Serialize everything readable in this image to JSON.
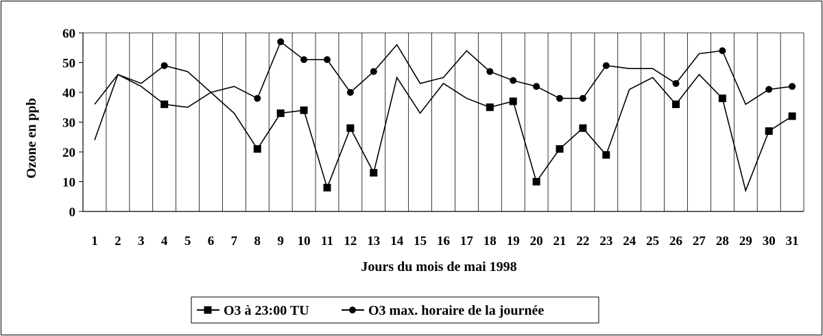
{
  "chart_data": {
    "type": "line",
    "xlabel": "Jours du mois de mai 1998",
    "ylabel": "Ozone en ppb",
    "ylim": [
      0,
      60
    ],
    "yticks": [
      0,
      10,
      20,
      30,
      40,
      50,
      60
    ],
    "categories": [
      "1",
      "2",
      "3",
      "4",
      "5",
      "6",
      "7",
      "8",
      "9",
      "10",
      "11",
      "12",
      "13",
      "14",
      "15",
      "16",
      "17",
      "18",
      "19",
      "20",
      "21",
      "22",
      "23",
      "24",
      "25",
      "26",
      "27",
      "28",
      "29",
      "30",
      "31"
    ],
    "grid": "vertical",
    "legend_position": "bottom",
    "series": [
      {
        "name": "O3 à 23:00 TU",
        "marker": "square",
        "color": "#000000",
        "values": [
          24,
          46,
          42,
          36,
          35,
          40,
          33,
          21,
          33,
          34,
          8,
          28,
          13,
          45,
          33,
          43,
          38,
          35,
          37,
          10,
          21,
          28,
          19,
          41,
          45,
          36,
          46,
          38,
          7,
          27,
          32
        ],
        "marked_days": [
          4,
          8,
          9,
          10,
          11,
          12,
          13,
          18,
          19,
          20,
          21,
          22,
          23,
          26,
          28,
          30,
          31
        ]
      },
      {
        "name": "O3 max. horaire de la journée",
        "marker": "circle",
        "color": "#000000",
        "values": [
          36,
          46,
          43,
          49,
          47,
          40,
          42,
          38,
          57,
          51,
          51,
          40,
          47,
          56,
          43,
          45,
          54,
          47,
          44,
          42,
          38,
          38,
          49,
          48,
          48,
          43,
          53,
          54,
          36,
          41,
          42
        ],
        "marked_days": [
          4,
          8,
          9,
          10,
          11,
          12,
          13,
          18,
          19,
          20,
          21,
          22,
          23,
          26,
          28,
          30,
          31
        ]
      }
    ]
  }
}
